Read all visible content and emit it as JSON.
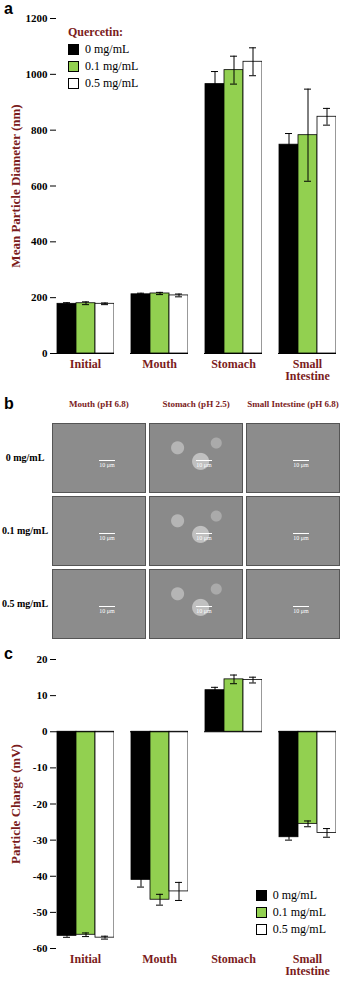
{
  "chart_data": [
    {
      "panel_label": "a",
      "type": "bar",
      "ylabel": "Mean Particle Diameter (nm)",
      "categories": [
        "Initial",
        "Mouth",
        "Stomach",
        "Small Intestine"
      ],
      "legend_title": "Quercetin:",
      "legend": "top-left",
      "series": [
        {
          "name": "0 mg/mL",
          "color": "#000000",
          "values": [
            178,
            212,
            965,
            748
          ],
          "errors": [
            4,
            4,
            45,
            40
          ]
        },
        {
          "name": "0.1 mg/mL",
          "color": "#92d050",
          "values": [
            180,
            215,
            1015,
            782
          ],
          "errors": [
            5,
            4,
            50,
            165
          ]
        },
        {
          "name": "0.5 mg/mL",
          "color": "#ffffff",
          "values": [
            178,
            208,
            1045,
            848
          ],
          "errors": [
            3,
            5,
            50,
            30
          ]
        }
      ],
      "ylim": [
        0,
        1200
      ],
      "yticks": [
        0,
        200,
        400,
        600,
        800,
        1000,
        1200
      ]
    },
    {
      "panel_label": "c",
      "type": "bar",
      "ylabel": "Particle Charge (mV)",
      "categories": [
        "Initial",
        "Mouth",
        "Stomach",
        "Small Intestine"
      ],
      "legend": "bottom-right",
      "series": [
        {
          "name": "0 mg/mL",
          "color": "#000000",
          "values": [
            -56.5,
            -41,
            11.5,
            -29.2
          ],
          "errors": [
            0.4,
            2,
            0.8,
            0.8
          ]
        },
        {
          "name": "0.1 mg/mL",
          "color": "#92d050",
          "values": [
            -56.2,
            -46.5,
            14.5,
            -25.5
          ],
          "errors": [
            0.5,
            1.5,
            1.2,
            0.8
          ]
        },
        {
          "name": "0.5 mg/mL",
          "color": "#ffffff",
          "values": [
            -57,
            -44.2,
            14.3,
            -28
          ],
          "errors": [
            0.4,
            2.5,
            0.8,
            1.2
          ]
        }
      ],
      "ylim": [
        -60,
        20
      ],
      "yticks": [
        -60,
        -50,
        -40,
        -30,
        -20,
        -10,
        0,
        10,
        20
      ]
    }
  ],
  "images": {
    "panel_label": "b",
    "columns": [
      "Mouth (pH 6.8)",
      "Stomach (pH 2.5)",
      "Small Intestine (pH 6.8)"
    ],
    "rows": [
      "0 mg/mL",
      "0.1 mg/mL",
      "0.5 mg/mL"
    ],
    "scale_bar": "10 μm"
  }
}
